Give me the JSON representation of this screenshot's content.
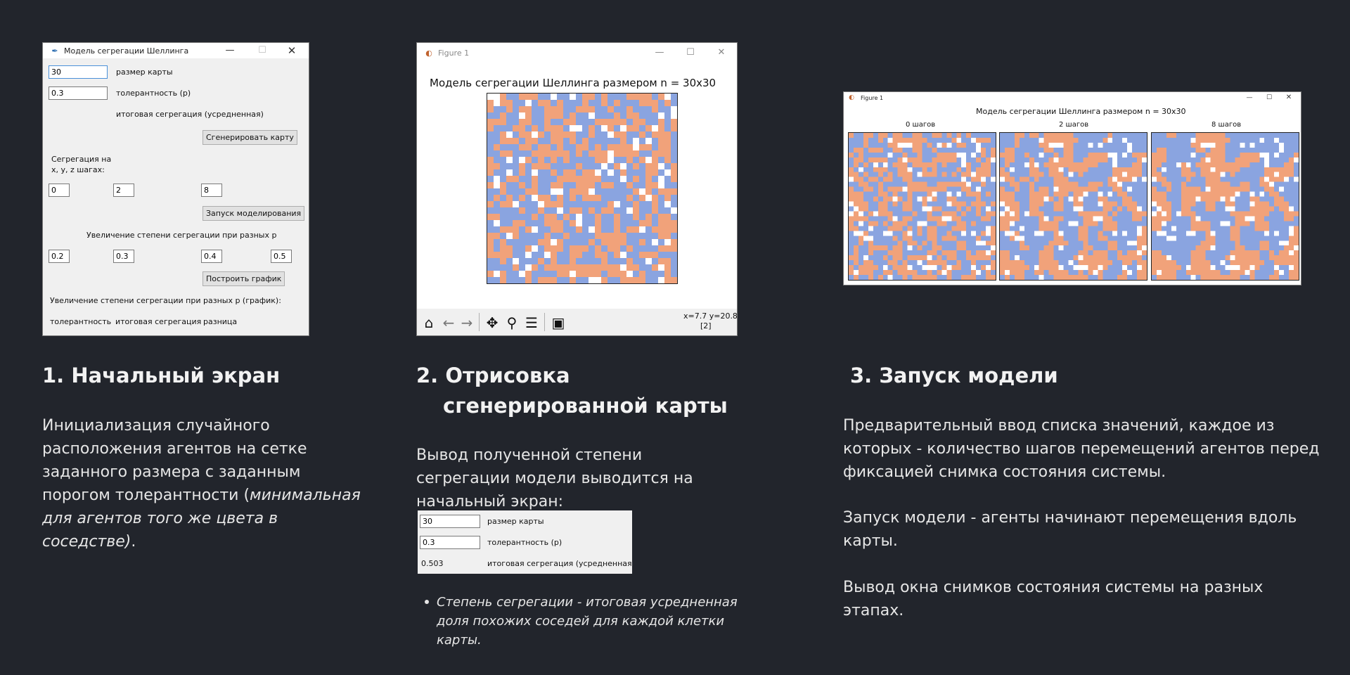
{
  "colors": {
    "background": "#22252c",
    "agent_a": "#f1a27a",
    "agent_b": "#8aa4e0",
    "empty": "#ffffff"
  },
  "screen1": {
    "window_title": "Модель сегрегации Шеллинга",
    "map_size_value": "30",
    "map_size_label": "размер карты",
    "tolerance_value": "0.3",
    "tolerance_label": "толерантность (p)",
    "segregation_label": "итоговая сегрегация (усредненная)",
    "generate_button": "Сгенерировать карту",
    "steps_label_line1": "Сегрегация на",
    "steps_label_line2": "x, y, z шагах:",
    "steps": [
      "0",
      "2",
      "8"
    ],
    "run_button": "Запуск моделирования",
    "increase_label": "Увеличение степени сегрегации при разных p",
    "p_values": [
      "0.2",
      "0.3",
      "0.4",
      "0.5"
    ],
    "plot_button": "Построить график",
    "increase_graph_label": "Увеличение степени сегрегации при разных p (график):",
    "col_tolerance": "толерантность",
    "col_segregation": "итоговая сегрегация",
    "col_difference": "разница"
  },
  "screen2": {
    "window_title": "Figure 1",
    "plot_title": "Модель сегрегации Шеллинга размером n = 30x30",
    "coords": "x=7.7 y=20.8",
    "coords_extra": "[2]",
    "toolbar_icons": [
      "home-icon",
      "back-arrow-icon",
      "forward-arrow-icon",
      "move-icon",
      "zoom-icon",
      "configure-icon",
      "save-icon"
    ]
  },
  "screen3": {
    "window_title": "Figure 1",
    "plot_title": "Модель сегрегации Шеллинга размером n = 30x30",
    "panels": [
      "0 шагов",
      "2 шагов",
      "8 шагов"
    ]
  },
  "section1": {
    "number": "1.",
    "title": "Начальный экран",
    "text_plain": "Инициализация случайного расположения агентов на сетке заданного размера с заданным порогом толерантности (",
    "text_italic": "минимальная для агентов того же цвета в соседстве)",
    "text_end": "."
  },
  "section2": {
    "number": "2.",
    "title_line1": "Отрисовка",
    "title_line2": "сгенерированной карты",
    "text": "Вывод полученной степени сегрегации модели выводится на начальный экран:",
    "snippet": {
      "map_size_value": "30",
      "map_size_label": "размер карты",
      "tolerance_value": "0.3",
      "tolerance_label": "толерантность (p)",
      "segregation_value": "0.503",
      "segregation_label": "итоговая сегрегация (усредненная)"
    },
    "bullet": "Степень сегрегации - итоговая усредненная доля похожих соседей для каждой клетки карты."
  },
  "section3": {
    "number": "3.",
    "title": "Запуск модели",
    "paragraphs": [
      "Предварительный ввод списка значений, каждое из которых - количество шагов перемещений агентов перед фиксацией снимка состояния системы.",
      "Запуск модели - агенты начинают перемещения вдоль карты.",
      "Вывод окна снимков состояния системы на разных этапах."
    ]
  }
}
